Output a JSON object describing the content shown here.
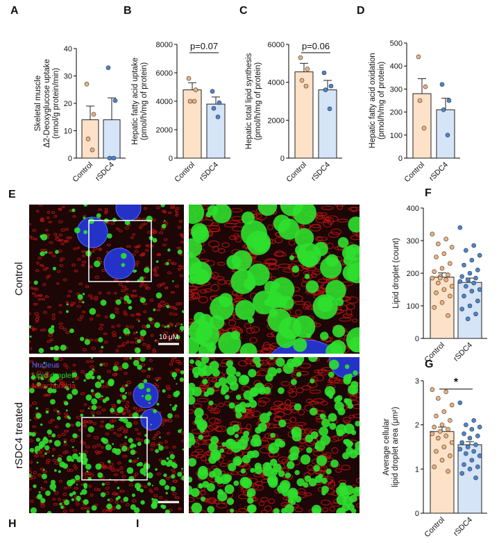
{
  "panel_letters": {
    "E": "E",
    "H": "H",
    "I": "I"
  },
  "images": {
    "row_labels": [
      "Control",
      "rSDC4 treated"
    ],
    "scale_bar": "10 μM",
    "legend": [
      {
        "name": "Nucleus",
        "color": "#3f6bff"
      },
      {
        "name": "Lipid droplet",
        "color": "#22d12a"
      },
      {
        "name": "Mitochondria",
        "color": "#e01818"
      }
    ]
  },
  "chart_data": [
    {
      "type": "bar",
      "panel": "A",
      "ylabel": [
        "Skeletal muscle",
        "Δ2-Deoxyglucose uptake",
        "(nmol/g protein/min)"
      ],
      "categories": [
        "Control",
        "rSDC4"
      ],
      "colors": [
        "#fde2c8",
        "#d6e4f8"
      ],
      "point_colors": [
        "#f0b07a",
        "#4a86d0"
      ],
      "values": [
        14,
        14
      ],
      "errors": [
        5,
        8
      ],
      "points": [
        [
          27,
          16,
          7,
          3
        ],
        [
          33,
          21,
          0,
          0
        ]
      ],
      "ylim": [
        0,
        40
      ],
      "yticks": [
        0,
        10,
        20,
        30,
        40
      ]
    },
    {
      "type": "bar",
      "panel": "B",
      "ylabel": [
        "Hepatic fatty acid uptake",
        "(pmol/h/mg of protein)"
      ],
      "annotation": "p=0.07",
      "categories": [
        "Control",
        "rSDC4"
      ],
      "colors": [
        "#fde2c8",
        "#d6e4f8"
      ],
      "point_colors": [
        "#f0b07a",
        "#4a86d0"
      ],
      "values": [
        4800,
        3800
      ],
      "errors": [
        500,
        500
      ],
      "points": [
        [
          5600,
          4800,
          4000,
          4000
        ],
        [
          4700,
          3900,
          3500,
          2900
        ]
      ],
      "ylim": [
        0,
        8000
      ],
      "yticks": [
        0,
        2000,
        4000,
        6000,
        8000
      ]
    },
    {
      "type": "bar",
      "panel": "C",
      "ylabel": [
        "Hepatic total lipid synthesis",
        "(pmol/h/mg of protein)"
      ],
      "annotation": "p=0.06",
      "categories": [
        "Control",
        "rSDC4"
      ],
      "colors": [
        "#fde2c8",
        "#d6e4f8"
      ],
      "point_colors": [
        "#f0b07a",
        "#4a86d0"
      ],
      "values": [
        4550,
        3600
      ],
      "errors": [
        450,
        500
      ],
      "points": [
        [
          5300,
          4700,
          4100,
          3800
        ],
        [
          4500,
          3800,
          3600,
          2600
        ]
      ],
      "ylim": [
        0,
        6000
      ],
      "yticks": [
        0,
        2000,
        4000,
        6000
      ]
    },
    {
      "type": "bar",
      "panel": "D",
      "ylabel": [
        "Hepatic fatty acid oxidation",
        "(pmol/h/mg of protein)"
      ],
      "categories": [
        "Control",
        "rSDC4"
      ],
      "colors": [
        "#fde2c8",
        "#d6e4f8"
      ],
      "point_colors": [
        "#f0b07a",
        "#4a86d0"
      ],
      "values": [
        280,
        210
      ],
      "errors": [
        65,
        50
      ],
      "points": [
        [
          440,
          310,
          250,
          130
        ],
        [
          320,
          250,
          210,
          100
        ]
      ],
      "ylim": [
        0,
        500
      ],
      "yticks": [
        0,
        100,
        200,
        300,
        400,
        500
      ]
    },
    {
      "type": "bar",
      "panel": "F",
      "ylabel": [
        "Lipid droplet (count)"
      ],
      "categories": [
        "Control",
        "rSDC4"
      ],
      "colors": [
        "#fde2c8",
        "#d6e4f8"
      ],
      "point_colors": [
        "#f0b07a",
        "#4a86d0"
      ],
      "values": [
        188,
        172
      ],
      "errors": [
        13,
        13
      ],
      "points": [
        [
          320,
          305,
          290,
          280,
          260,
          250,
          230,
          215,
          205,
          195,
          190,
          185,
          180,
          170,
          160,
          150,
          140,
          130,
          110,
          95,
          70,
          185
        ],
        [
          340,
          285,
          270,
          255,
          240,
          225,
          210,
          200,
          190,
          185,
          180,
          175,
          170,
          160,
          150,
          145,
          130,
          115,
          100,
          90,
          75,
          60
        ]
      ],
      "ylim": [
        0,
        400
      ],
      "yticks": [
        0,
        100,
        200,
        300,
        400
      ]
    },
    {
      "type": "bar",
      "panel": "G",
      "ylabel": [
        "Average cellular",
        "lipid droplet area (μm²)"
      ],
      "annotation": "*",
      "categories": [
        "Control",
        "rSDC4"
      ],
      "colors": [
        "#fde2c8",
        "#d6e4f8"
      ],
      "point_colors": [
        "#f0b07a",
        "#4a86d0"
      ],
      "values": [
        1.85,
        1.55
      ],
      "errors": [
        0.1,
        0.07
      ],
      "points": [
        [
          2.8,
          2.75,
          2.6,
          2.45,
          2.3,
          2.2,
          2.1,
          2.0,
          1.95,
          1.9,
          1.85,
          1.8,
          1.75,
          1.7,
          1.6,
          1.5,
          1.4,
          1.3,
          1.2,
          1.05,
          0.95
        ],
        [
          2.5,
          2.1,
          2.0,
          1.95,
          1.9,
          1.8,
          1.75,
          1.7,
          1.6,
          1.55,
          1.5,
          1.45,
          1.4,
          1.35,
          1.3,
          1.2,
          1.1,
          1.05,
          1.0,
          0.9,
          0.8
        ]
      ],
      "ylim": [
        0,
        3
      ],
      "yticks": [
        0,
        1,
        2,
        3
      ]
    }
  ]
}
